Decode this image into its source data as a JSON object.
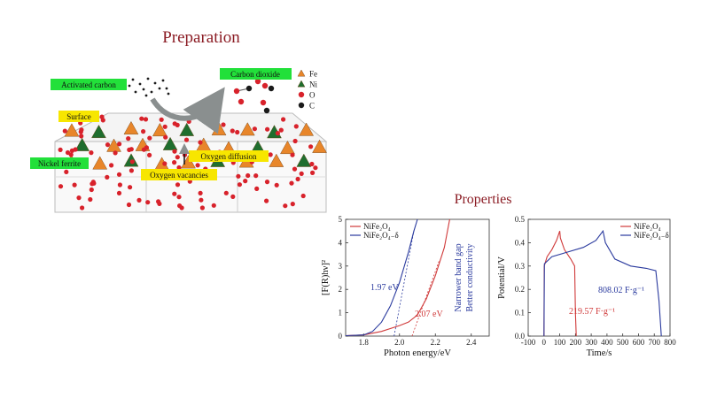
{
  "preparation": {
    "title": "Preparation",
    "labels": {
      "activated_carbon": "Activated carbon",
      "carbon_dioxide": "Carbon dioxide",
      "surface": "Surface",
      "nickel_ferrite": "Nickel ferrite",
      "oxygen_diffusion": "Oxygen diffusion",
      "oxygen_vacancies": "Oxygen vacancies"
    },
    "legend": [
      {
        "symbol": "triangle",
        "color": "#e8862a",
        "label": "Fe"
      },
      {
        "symbol": "triangle",
        "color": "#1f6e2e",
        "label": "Ni"
      },
      {
        "symbol": "circle",
        "color": "#d8222b",
        "label": "O"
      },
      {
        "symbol": "circle",
        "color": "#1a1a1a",
        "label": "C"
      }
    ]
  },
  "properties": {
    "title": "Properties"
  },
  "chart_data": [
    {
      "type": "line",
      "xlabel": "Photon energy/eV",
      "ylabel": "[F(R)hν]²",
      "xlim": [
        1.7,
        2.5
      ],
      "ylim": [
        0,
        5
      ],
      "xticks": [
        "1.8",
        "2.0",
        "2.2",
        "2.4"
      ],
      "yticks": [
        "0",
        "1",
        "2",
        "3",
        "4",
        "5"
      ],
      "legend_position": "top-left",
      "series": [
        {
          "name": "NiFe₂O₄",
          "color": "#d03a3a",
          "x": [
            1.7,
            1.8,
            1.9,
            2.0,
            2.05,
            2.1,
            2.15,
            2.2,
            2.25,
            2.28
          ],
          "y": [
            0.02,
            0.05,
            0.2,
            0.45,
            0.6,
            0.9,
            1.6,
            2.6,
            3.8,
            5.0
          ]
        },
        {
          "name": "NiFe₂O₄₋δ",
          "color": "#2a3a9e",
          "x": [
            1.7,
            1.8,
            1.85,
            1.9,
            1.95,
            2.0,
            2.05,
            2.08,
            2.1
          ],
          "y": [
            0.02,
            0.05,
            0.2,
            0.6,
            1.3,
            2.3,
            3.6,
            4.5,
            5.0
          ]
        }
      ],
      "annotations": [
        {
          "text": "1.97 eV",
          "color": "#2a3a9e"
        },
        {
          "text": "2.07 eV",
          "color": "#d03a3a"
        },
        {
          "text": "Narrower band gap",
          "color": "#2a3a9e"
        },
        {
          "text": "Better conductivity",
          "color": "#2a3a9e"
        }
      ]
    },
    {
      "type": "line",
      "xlabel": "Time/s",
      "ylabel": "Potential/V",
      "xlim": [
        -100,
        800
      ],
      "ylim": [
        0,
        0.5
      ],
      "xticks": [
        "-100",
        "0",
        "100",
        "200",
        "300",
        "400",
        "500",
        "600",
        "700",
        "800"
      ],
      "yticks": [
        "0.0",
        "0.1",
        "0.2",
        "0.3",
        "0.4",
        "0.5"
      ],
      "legend_position": "top-right",
      "series": [
        {
          "name": "NiFe₂O₄",
          "color": "#d03a3a",
          "x": [
            0,
            2,
            20,
            50,
            80,
            100,
            104,
            130,
            170,
            195,
            200,
            205
          ],
          "y": [
            0.0,
            0.3,
            0.34,
            0.37,
            0.41,
            0.45,
            0.42,
            0.37,
            0.33,
            0.3,
            0.1,
            0.0
          ]
        },
        {
          "name": "NiFe₂O₄₋δ",
          "color": "#2a3a9e",
          "x": [
            0,
            3,
            50,
            150,
            250,
            330,
            375,
            390,
            450,
            550,
            650,
            710,
            730,
            745
          ],
          "y": [
            0.0,
            0.31,
            0.34,
            0.36,
            0.38,
            0.41,
            0.45,
            0.4,
            0.33,
            0.3,
            0.29,
            0.28,
            0.15,
            0.0
          ]
        }
      ],
      "annotations": [
        {
          "text": "808.02 F·g⁻¹",
          "color": "#2a3a9e"
        },
        {
          "text": "219.57 F·g⁻¹",
          "color": "#d03a3a"
        }
      ]
    }
  ]
}
